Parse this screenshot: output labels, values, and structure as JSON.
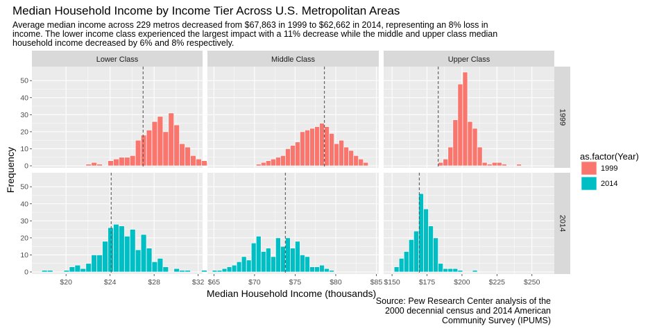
{
  "chart_data": {
    "type": "bar",
    "title": "Median Household Income by Income Tier Across U.S. Metropolitan Areas",
    "subtitle": [
      "Average median income across 229 metros decreased from $67,863 in 1999 to $62,662 in 2014, representing an 8% loss in",
      "income. The lower income class experienced the largest impact with a 11% decrease while the middle and upper class median",
      "household income decreased by 6% and 8% respectively."
    ],
    "xlabel": "Median Household Income (thousands)",
    "ylabel": "Frequency",
    "caption": [
      "Source: Pew Research Center analysis of the",
      "2000 decennial census and 2014 American",
      "Community Survey (IPUMS)"
    ],
    "legend": {
      "title": "as.factor(Year)",
      "position": "right",
      "entries": [
        {
          "label": "1999",
          "color": "#F8766D"
        },
        {
          "label": "2014",
          "color": "#00BFC4"
        }
      ]
    },
    "rows": [
      "1999",
      "2014"
    ],
    "ylim": [
      0,
      57
    ],
    "yticks": [
      0,
      10,
      20,
      30,
      40,
      50
    ],
    "grid": true,
    "panels": [
      {
        "column": "Lower Class",
        "xlim": [
          16.9,
          32.4
        ],
        "xticks": [
          20,
          24,
          28,
          32
        ],
        "xtick_labels": [
          "$20",
          "$24",
          "$28",
          "$32"
        ],
        "bin_start": 17.8,
        "bin_width": 0.5,
        "means": {
          "1999": 27.0,
          "2014": 24.1
        },
        "counts": {
          "1999": [
            0,
            0,
            0,
            0,
            0,
            0,
            0,
            0,
            1,
            2,
            1,
            0,
            3,
            4,
            5,
            5,
            6,
            15,
            18,
            21,
            26,
            29,
            20,
            31,
            24,
            13,
            11,
            6,
            4,
            3,
            2,
            0,
            0,
            0,
            0
          ],
          "2014": [
            1,
            1,
            0,
            0,
            1,
            3,
            4,
            2,
            5,
            10,
            10,
            18,
            26,
            28,
            27,
            21,
            25,
            13,
            22,
            14,
            6,
            8,
            3,
            0,
            2,
            1,
            1,
            0,
            0,
            1,
            0,
            0,
            0,
            0,
            0
          ]
        }
      },
      {
        "column": "Middle Class",
        "xlim": [
          64.2,
          85.3
        ],
        "xticks": [
          65,
          70,
          75,
          80,
          85
        ],
        "xtick_labels": [
          "$65",
          "$70",
          "$75",
          "$80",
          "$85"
        ],
        "bin_start": 64.8,
        "bin_width": 0.6,
        "means": {
          "1999": 78.6,
          "2014": 73.8
        },
        "counts": {
          "1999": [
            0,
            0,
            0,
            0,
            0,
            0,
            0,
            0,
            0,
            1,
            2,
            3,
            4,
            5,
            6,
            10,
            12,
            14,
            20,
            21,
            22,
            23,
            25,
            23,
            19,
            13,
            15,
            11,
            9,
            6,
            4,
            2,
            0,
            0,
            0
          ],
          "2014": [
            1,
            1,
            2,
            3,
            4,
            6,
            9,
            7,
            17,
            21,
            12,
            14,
            9,
            20,
            15,
            20,
            14,
            18,
            10,
            9,
            3,
            3,
            4,
            2,
            1,
            0,
            0,
            0,
            0,
            0,
            0,
            0,
            0,
            0,
            0
          ]
        }
      },
      {
        "column": "Upper Class",
        "xlim": [
          144,
          266
        ],
        "xticks": [
          150,
          175,
          200,
          225,
          250
        ],
        "xtick_labels": [
          "$150",
          "$175",
          "$200",
          "$225",
          "$250"
        ],
        "bin_start": 148,
        "bin_width": 3.5,
        "means": {
          "1999": 183.0,
          "2014": 169.5
        },
        "counts": {
          "1999": [
            0,
            0,
            0,
            0,
            0,
            0,
            0,
            0,
            0,
            0,
            2,
            4,
            11,
            27,
            48,
            55,
            26,
            22,
            11,
            2,
            1,
            2,
            2,
            1,
            0,
            0,
            1,
            0,
            0,
            0,
            0,
            0,
            0,
            0,
            0
          ],
          "2014": [
            0,
            3,
            8,
            12,
            19,
            24,
            46,
            37,
            27,
            20,
            5,
            2,
            2,
            2,
            1,
            0,
            0,
            1,
            0,
            0,
            0,
            0,
            0,
            0,
            0,
            0,
            0,
            0,
            0,
            0,
            0,
            0,
            0,
            0,
            0
          ]
        }
      }
    ]
  }
}
